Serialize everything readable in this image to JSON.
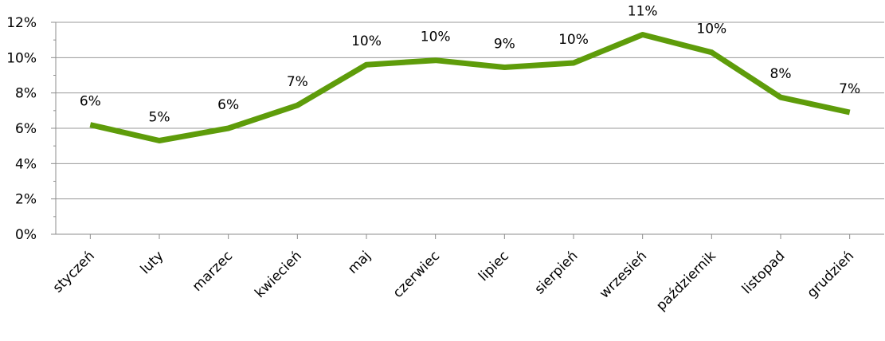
{
  "chart_data": {
    "type": "line",
    "categories": [
      "styczeń",
      "luty",
      "marzec",
      "kwiecień",
      "maj",
      "czerwiec",
      "lipiec",
      "sierpień",
      "wrzesień",
      "październik",
      "listopad",
      "grudzień"
    ],
    "series": [
      {
        "values": [
          6.2,
          5.3,
          6.0,
          7.3,
          9.6,
          9.85,
          9.45,
          9.7,
          11.3,
          10.3,
          7.75,
          6.9
        ],
        "data_labels": [
          "6%",
          "5%",
          "6%",
          "7%",
          "10%",
          "10%",
          "9%",
          "10%",
          "11%",
          "10%",
          "8%",
          "7%"
        ],
        "color": "#5e9c0a"
      }
    ],
    "y_ticks": [
      "0%",
      "2%",
      "4%",
      "6%",
      "8%",
      "10%",
      "12%"
    ],
    "ylim": [
      0,
      12
    ],
    "grid": true,
    "legend": "none",
    "title": "",
    "xlabel": "",
    "ylabel": ""
  }
}
